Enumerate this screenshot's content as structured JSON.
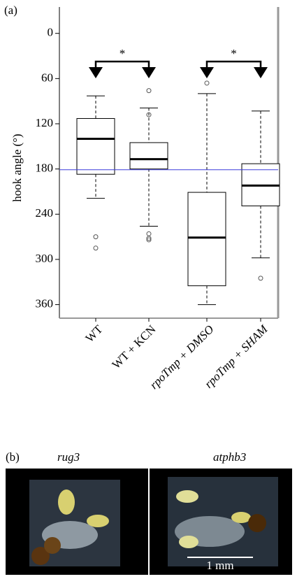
{
  "panel_a_label": "(a)",
  "chart_data": {
    "type": "box",
    "y_label": "hook angle (°)",
    "y_inverted": true,
    "categories": [
      "WT",
      "WT + KCN",
      "rpoTmp + DMSO",
      "rpoTmp + SHAM"
    ],
    "series": [
      {
        "whisker_low": 83,
        "q1": 113,
        "median": 140,
        "q3": 187,
        "whisker_high": 219,
        "outliers": [
          270,
          285
        ]
      },
      {
        "whisker_low": 99,
        "q1": 145,
        "median": 167,
        "q3": 180,
        "whisker_high": 256,
        "outliers": [
          76,
          108,
          266,
          272,
          274
        ]
      },
      {
        "whisker_low": 80,
        "q1": 211,
        "median": 271,
        "q3": 335,
        "whisker_high": 360,
        "outliers": [
          66
        ]
      },
      {
        "whisker_low": 103,
        "q1": 173,
        "median": 202,
        "q3": 229,
        "whisker_high": 298,
        "outliers": [
          325
        ]
      }
    ],
    "reference_line": 181,
    "reference_color": "#3b3bdc",
    "annotations": [
      "*",
      "*"
    ],
    "ylim": [
      -35,
      378
    ],
    "yticks": [
      0,
      60,
      120,
      180,
      240,
      300,
      360
    ]
  },
  "panel_b": {
    "label": "(b)",
    "captions": [
      "rug3",
      "atphb3"
    ],
    "scale_bar": "1 mm"
  }
}
